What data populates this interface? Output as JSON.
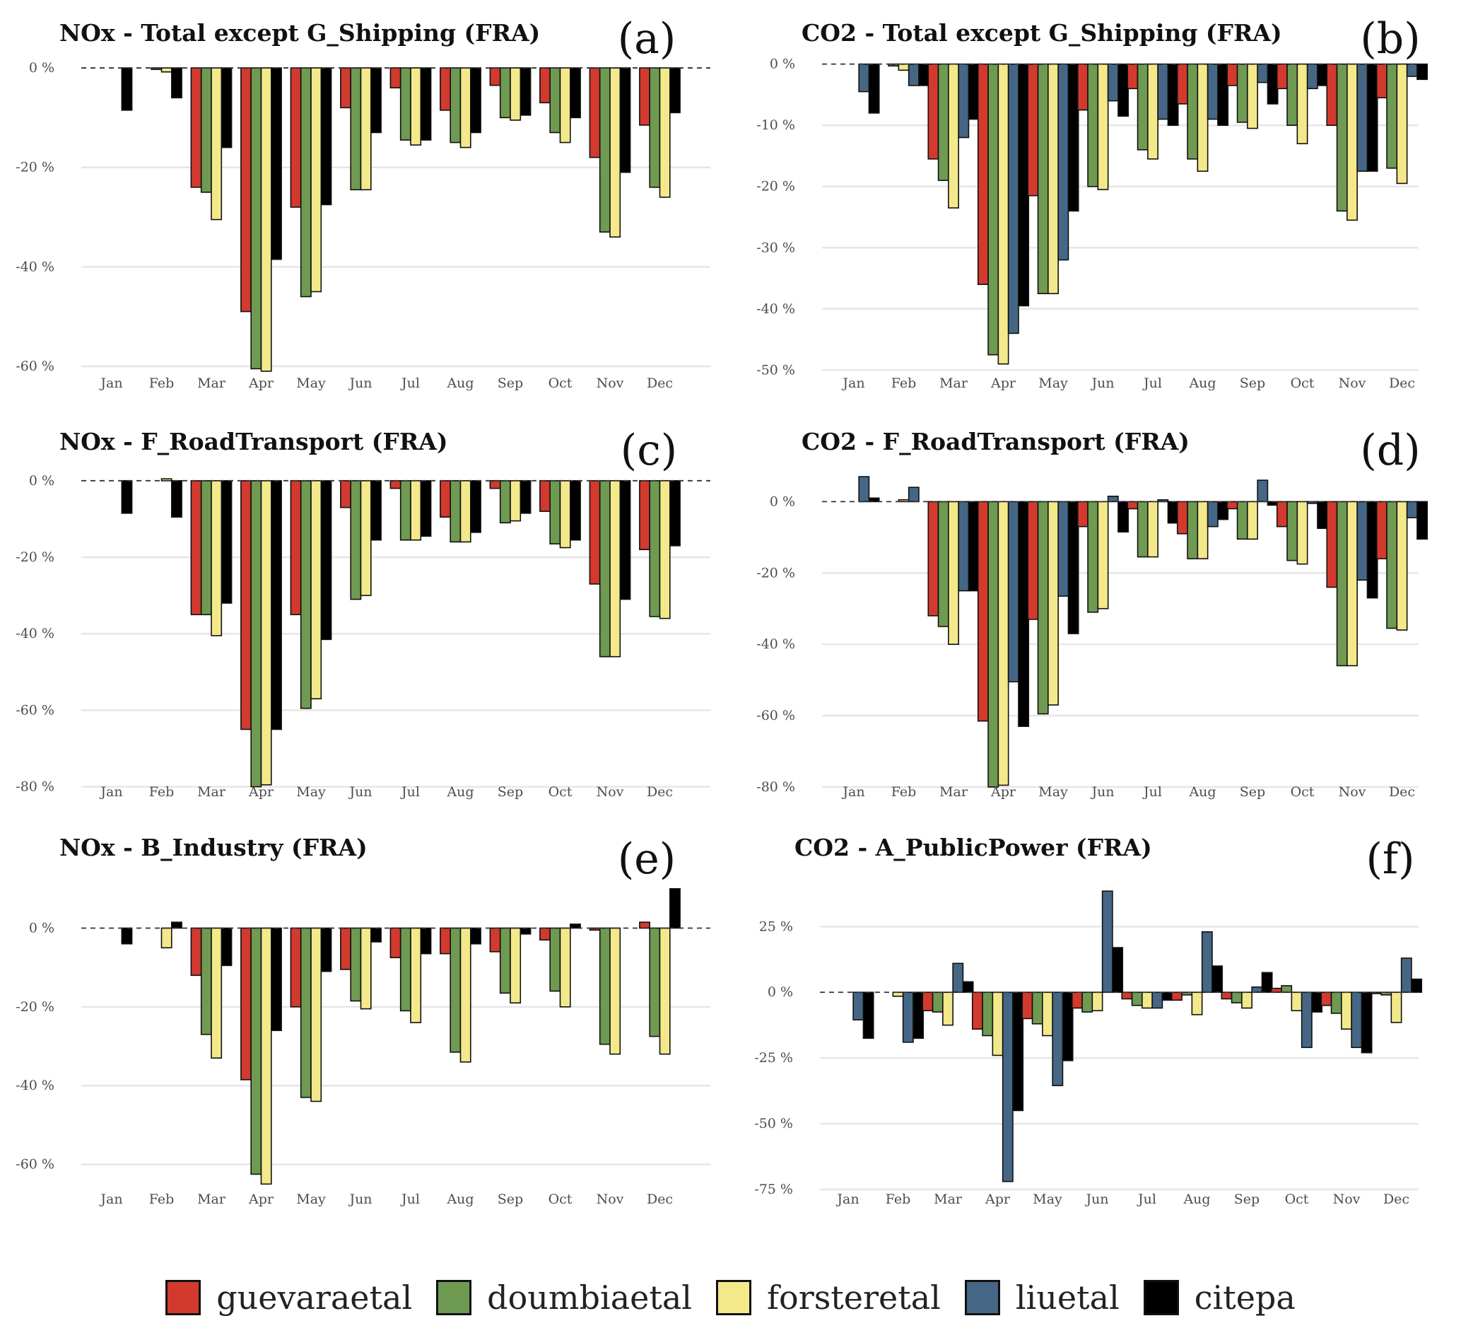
{
  "legend": [
    {
      "key": "guevaraetal",
      "label": "guevaraetal",
      "color": "#d23a2e"
    },
    {
      "key": "doumbiaetal",
      "label": "doumbiaetal",
      "color": "#6e9a52"
    },
    {
      "key": "forsteretal",
      "label": "forsteretal",
      "color": "#f3e98a"
    },
    {
      "key": "liuetal",
      "label": "liuetal",
      "color": "#456785"
    },
    {
      "key": "citepa",
      "label": "citepa",
      "color": "#000000"
    }
  ],
  "chart_data": [
    {
      "panel": "(a)",
      "type": "bar",
      "title": "NOx - Total except G_Shipping (FRA)",
      "categories": [
        "Jan",
        "Feb",
        "Mar",
        "Apr",
        "May",
        "Jun",
        "Jul",
        "Aug",
        "Sep",
        "Oct",
        "Nov",
        "Dec"
      ],
      "ylim": [
        -62,
        2
      ],
      "yticks": [
        0,
        -20,
        -40,
        -60
      ],
      "ytick_labels": [
        "0 %",
        "-20 %",
        "-40 %",
        "-60 %"
      ],
      "series": [
        {
          "name": "guevaraetal",
          "values": [
            0,
            0,
            -24,
            -49,
            -28,
            -8,
            -4,
            -8.5,
            -3.5,
            -7,
            -18,
            -11.5
          ]
        },
        {
          "name": "doumbiaetal",
          "values": [
            0,
            -0.3,
            -25,
            -60.5,
            -46,
            -24.5,
            -14.5,
            -15,
            -10,
            -13,
            -33,
            -24
          ]
        },
        {
          "name": "forsteretal",
          "values": [
            0,
            -0.8,
            -30.5,
            -61,
            -45,
            -24.5,
            -15.5,
            -16,
            -10.5,
            -15,
            -34,
            -26
          ]
        },
        {
          "name": "liuetal",
          "values": null
        },
        {
          "name": "citepa",
          "values": [
            -8.5,
            -6,
            -16,
            -38.5,
            -27.5,
            -13,
            -14.5,
            -13,
            -9.5,
            -10,
            -21,
            -9
          ]
        }
      ]
    },
    {
      "panel": "(b)",
      "type": "bar",
      "title": "CO2 - Total except G_Shipping (FRA)",
      "categories": [
        "Jan",
        "Feb",
        "Mar",
        "Apr",
        "May",
        "Jun",
        "Jul",
        "Aug",
        "Sep",
        "Oct",
        "Nov",
        "Dec"
      ],
      "ylim": [
        -51,
        1
      ],
      "yticks": [
        0,
        -10,
        -20,
        -30,
        -40,
        -50
      ],
      "ytick_labels": [
        "0 %",
        "-10 %",
        "-20 %",
        "-30 %",
        "-40 %",
        "-50 %"
      ],
      "series": [
        {
          "name": "guevaraetal",
          "values": [
            0,
            0,
            -15.5,
            -36,
            -21.5,
            -7.5,
            -4,
            -6.5,
            -3.5,
            -4,
            -10,
            -5.5
          ]
        },
        {
          "name": "doumbiaetal",
          "values": [
            0,
            -0.3,
            -19,
            -47.5,
            -37.5,
            -20,
            -14,
            -15.5,
            -9.5,
            -10,
            -24,
            -17
          ]
        },
        {
          "name": "forsteretal",
          "values": [
            0,
            -1,
            -23.5,
            -49,
            -37.5,
            -20.5,
            -15.5,
            -17.5,
            -10.5,
            -13,
            -25.5,
            -19.5
          ]
        },
        {
          "name": "liuetal",
          "values": [
            -4.5,
            -3.5,
            -12,
            -44,
            -32,
            -6,
            -9,
            -9,
            -3,
            -4,
            -17.5,
            -2
          ]
        },
        {
          "name": "citepa",
          "values": [
            -8,
            -3.5,
            -9,
            -39.5,
            -24,
            -8.5,
            -10,
            -10,
            -6.5,
            -3.5,
            -17.5,
            -2.5
          ]
        }
      ]
    },
    {
      "panel": "(c)",
      "type": "bar",
      "title": "NOx - F_RoadTransport (FRA)",
      "categories": [
        "Jan",
        "Feb",
        "Mar",
        "Apr",
        "May",
        "Jun",
        "Jul",
        "Aug",
        "Sep",
        "Oct",
        "Nov",
        "Dec"
      ],
      "ylim": [
        -81,
        2
      ],
      "yticks": [
        0,
        -20,
        -40,
        -60,
        -80
      ],
      "ytick_labels": [
        "0 %",
        "-20 %",
        "-40 %",
        "-60 %",
        "-80 %"
      ],
      "series": [
        {
          "name": "guevaraetal",
          "values": [
            0,
            0,
            -35,
            -65,
            -35,
            -7,
            -2,
            -9.5,
            -2,
            -8,
            -27,
            -18
          ]
        },
        {
          "name": "doumbiaetal",
          "values": [
            0,
            0,
            -35,
            -80,
            -59.5,
            -31,
            -15.5,
            -16,
            -11,
            -16.5,
            -46,
            -35.5
          ]
        },
        {
          "name": "forsteretal",
          "values": [
            0,
            0.5,
            -40.5,
            -79.5,
            -57,
            -30,
            -15.5,
            -16,
            -10.5,
            -17.5,
            -46,
            -36
          ]
        },
        {
          "name": "liuetal",
          "values": null
        },
        {
          "name": "citepa",
          "values": [
            -8.5,
            -9.5,
            -32,
            -65,
            -41.5,
            -15.5,
            -14.5,
            -13.5,
            -8.5,
            -15.5,
            -31,
            -17
          ]
        }
      ]
    },
    {
      "panel": "(d)",
      "type": "bar",
      "title": "CO2 - F_RoadTransport (FRA)",
      "categories": [
        "Jan",
        "Feb",
        "Mar",
        "Apr",
        "May",
        "Jun",
        "Jul",
        "Aug",
        "Sep",
        "Oct",
        "Nov",
        "Dec"
      ],
      "ylim": [
        -81,
        8
      ],
      "yticks": [
        0,
        -20,
        -40,
        -60,
        -80
      ],
      "ytick_labels": [
        "0 %",
        "-20 %",
        "-40 %",
        "-60 %",
        "-80 %"
      ],
      "series": [
        {
          "name": "guevaraetal",
          "values": [
            0,
            0,
            -32,
            -61.5,
            -33,
            -7,
            -2,
            -9,
            -2,
            -7,
            -24,
            -16
          ]
        },
        {
          "name": "doumbiaetal",
          "values": [
            0,
            0,
            -35,
            -80,
            -59.5,
            -31,
            -15.5,
            -16,
            -10.5,
            -16.5,
            -46,
            -35.5
          ]
        },
        {
          "name": "forsteretal",
          "values": [
            0,
            0.5,
            -40,
            -79.5,
            -57,
            -30,
            -15.5,
            -16,
            -10.5,
            -17.5,
            -46,
            -36
          ]
        },
        {
          "name": "liuetal",
          "values": [
            7,
            4,
            -25,
            -50.5,
            -26.5,
            1.5,
            0.5,
            -7,
            6,
            -0.5,
            -22,
            -4.5
          ]
        },
        {
          "name": "citepa",
          "values": [
            1,
            0,
            -25,
            -63,
            -37,
            -8.5,
            -6,
            -5,
            -1,
            -7.5,
            -27,
            -10.5
          ]
        }
      ]
    },
    {
      "panel": "(e)",
      "type": "bar",
      "title": "NOx - B_Industry (FRA)",
      "categories": [
        "Jan",
        "Feb",
        "Mar",
        "Apr",
        "May",
        "Jun",
        "Jul",
        "Aug",
        "Sep",
        "Oct",
        "Nov",
        "Dec"
      ],
      "ylim": [
        -66,
        10.5
      ],
      "yticks": [
        0,
        -20,
        -40,
        -60
      ],
      "ytick_labels": [
        "0 %",
        "-20 %",
        "-40 %",
        "-60 %"
      ],
      "series": [
        {
          "name": "guevaraetal",
          "values": [
            0,
            0,
            -12,
            -38.5,
            -20,
            -10.5,
            -7.5,
            -6.5,
            -6,
            -3,
            -0.5,
            1.5
          ]
        },
        {
          "name": "doumbiaetal",
          "values": [
            0,
            0,
            -27,
            -62.5,
            -43,
            -18.5,
            -21,
            -31.5,
            -16.5,
            -16,
            -29.5,
            -27.5
          ]
        },
        {
          "name": "forsteretal",
          "values": [
            0,
            -5,
            -33,
            -65,
            -44,
            -20.5,
            -24,
            -34,
            -19,
            -20,
            -32,
            -32
          ]
        },
        {
          "name": "liuetal",
          "values": null
        },
        {
          "name": "citepa",
          "values": [
            -4,
            1.5,
            -9.5,
            -26,
            -11,
            -3.5,
            -6.5,
            -4,
            -1.5,
            1,
            0,
            10
          ]
        }
      ]
    },
    {
      "panel": "(f)",
      "type": "bar",
      "title": "CO2 - A_PublicPower (FRA)",
      "categories": [
        "Jan",
        "Feb",
        "Mar",
        "Apr",
        "May",
        "Jun",
        "Jul",
        "Aug",
        "Sep",
        "Oct",
        "Nov",
        "Dec"
      ],
      "ylim": [
        -75,
        38
      ],
      "yticks": [
        25,
        0,
        -25,
        -50,
        -75
      ],
      "ytick_labels": [
        "25 %",
        "0 %",
        "-25 %",
        "-50 %",
        "-75 %"
      ],
      "series": [
        {
          "name": "guevaraetal",
          "values": [
            0,
            0,
            -7,
            -14,
            -10,
            -6,
            -2.5,
            -3,
            -2.5,
            1.5,
            -5,
            -0.5
          ]
        },
        {
          "name": "doumbiaetal",
          "values": [
            0,
            0,
            -7.5,
            -16.5,
            -12,
            -7.5,
            -5,
            -1,
            -4,
            2.5,
            -8,
            -1
          ]
        },
        {
          "name": "forsteretal",
          "values": [
            0,
            -1.5,
            -12.5,
            -24,
            -16.5,
            -7,
            -6,
            -8.5,
            -6,
            -7,
            -14,
            -11.5
          ]
        },
        {
          "name": "liuetal",
          "values": [
            -10.5,
            -19,
            11,
            -72,
            -35.5,
            38.5,
            -6,
            23,
            2,
            -21,
            -21,
            13
          ]
        },
        {
          "name": "citepa",
          "values": [
            -17.5,
            -17.5,
            4,
            -45,
            -26,
            17,
            -3,
            10,
            7.5,
            -7.5,
            -23,
            5
          ]
        }
      ]
    }
  ]
}
